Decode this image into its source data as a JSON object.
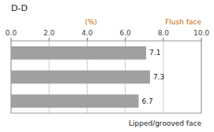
{
  "chart_data": {
    "type": "bar",
    "orientation": "horizontal",
    "title": "D-D",
    "categories": [
      null,
      null,
      null
    ],
    "values": [
      7.1,
      7.3,
      6.7
    ],
    "color": "#a0a0a0",
    "data_labels": true,
    "xlim": [
      0.0,
      10.0
    ],
    "xticks": [
      {
        "value": 0.0,
        "label": "0.0"
      },
      {
        "value": 2.0,
        "label": "2.0"
      },
      {
        "value": 4.0,
        "label": "4.0"
      },
      {
        "value": 6.0,
        "label": "6.0"
      },
      {
        "value": 8.0,
        "label": "8.0"
      },
      {
        "value": 10.0,
        "label": "10.0"
      }
    ],
    "grid": true,
    "tick_labels": "x",
    "annotations": [
      {
        "text": "(%)",
        "color": "#cc6600"
      },
      {
        "text": "Flush face",
        "color": "#cc6600"
      },
      {
        "text": "Lipped/grooved face"
      }
    ]
  }
}
